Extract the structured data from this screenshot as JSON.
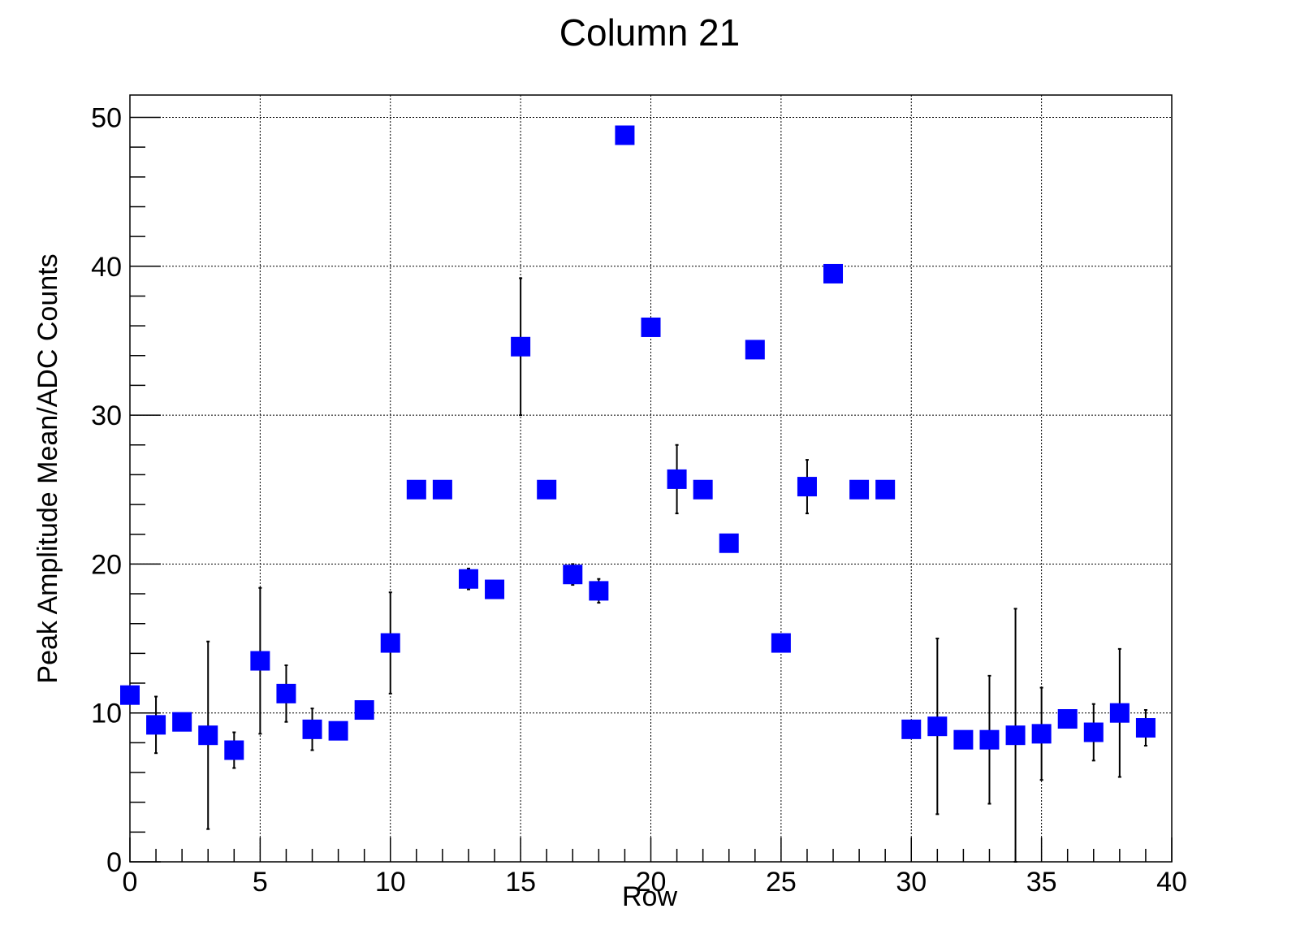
{
  "chart_data": {
    "type": "scatter",
    "title": "Column 21",
    "xlabel": "Row",
    "ylabel": "Peak Amplitude Mean/ADC Counts",
    "xlim": [
      0,
      40
    ],
    "ylim": [
      0,
      51.5
    ],
    "x_ticks": [
      0,
      5,
      10,
      15,
      20,
      25,
      30,
      35,
      40
    ],
    "y_ticks": [
      0,
      10,
      20,
      30,
      40,
      50
    ],
    "grid": true,
    "marker": "square",
    "color": "#0000ff",
    "points": [
      {
        "x": 0,
        "y": 11.2,
        "err": 0
      },
      {
        "x": 1,
        "y": 9.2,
        "err": 1.9
      },
      {
        "x": 2,
        "y": 9.4,
        "err": 0
      },
      {
        "x": 3,
        "y": 8.5,
        "err": 6.3
      },
      {
        "x": 4,
        "y": 7.5,
        "err": 1.2
      },
      {
        "x": 5,
        "y": 13.5,
        "err": 4.9
      },
      {
        "x": 6,
        "y": 11.3,
        "err": 1.9
      },
      {
        "x": 7,
        "y": 8.9,
        "err": 1.4
      },
      {
        "x": 8,
        "y": 8.8,
        "err": 0
      },
      {
        "x": 9,
        "y": 10.2,
        "err": 0
      },
      {
        "x": 10,
        "y": 14.7,
        "err": 3.4
      },
      {
        "x": 11,
        "y": 25.0,
        "err": 0
      },
      {
        "x": 12,
        "y": 25.0,
        "err": 0
      },
      {
        "x": 13,
        "y": 19.0,
        "err": 0.7
      },
      {
        "x": 14,
        "y": 18.3,
        "err": 0
      },
      {
        "x": 15,
        "y": 34.6,
        "err": 4.6
      },
      {
        "x": 16,
        "y": 25.0,
        "err": 0
      },
      {
        "x": 17,
        "y": 19.3,
        "err": 0.7
      },
      {
        "x": 18,
        "y": 18.2,
        "err": 0.8
      },
      {
        "x": 19,
        "y": 48.8,
        "err": 0
      },
      {
        "x": 20,
        "y": 35.9,
        "err": 0
      },
      {
        "x": 21,
        "y": 25.7,
        "err": 2.3
      },
      {
        "x": 22,
        "y": 25.0,
        "err": 0
      },
      {
        "x": 23,
        "y": 21.4,
        "err": 0
      },
      {
        "x": 24,
        "y": 34.4,
        "err": 0
      },
      {
        "x": 25,
        "y": 14.7,
        "err": 0
      },
      {
        "x": 26,
        "y": 25.2,
        "err": 1.8
      },
      {
        "x": 27,
        "y": 39.5,
        "err": 0
      },
      {
        "x": 28,
        "y": 25.0,
        "err": 0
      },
      {
        "x": 29,
        "y": 25.0,
        "err": 0
      },
      {
        "x": 30,
        "y": 8.9,
        "err": 0
      },
      {
        "x": 31,
        "y": 9.1,
        "err": 5.9
      },
      {
        "x": 32,
        "y": 8.2,
        "err": 0
      },
      {
        "x": 33,
        "y": 8.2,
        "err": 4.3
      },
      {
        "x": 34,
        "y": 8.5,
        "err": 8.5
      },
      {
        "x": 35,
        "y": 8.6,
        "err": 3.1
      },
      {
        "x": 36,
        "y": 9.6,
        "err": 0
      },
      {
        "x": 37,
        "y": 8.7,
        "err": 1.9
      },
      {
        "x": 38,
        "y": 10.0,
        "err": 4.3
      },
      {
        "x": 39,
        "y": 9.0,
        "err": 1.2
      }
    ]
  }
}
